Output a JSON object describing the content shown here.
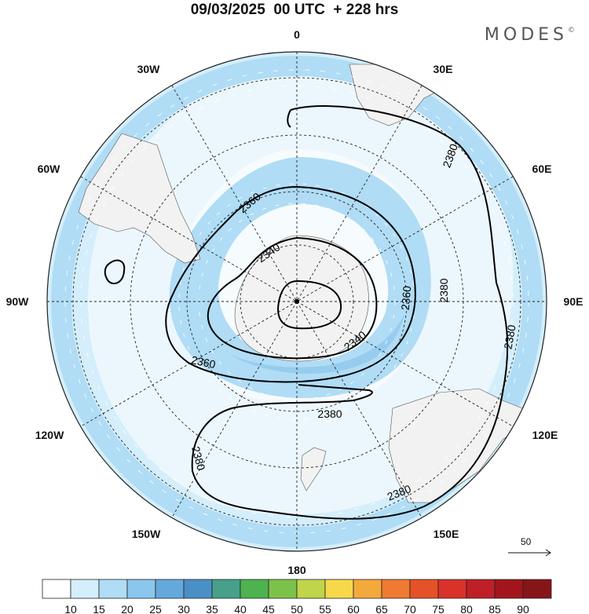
{
  "header": {
    "title": "09/03/2025  00 UTC  + 228 hrs",
    "brand": "MODES",
    "brand_mark": "©"
  },
  "map": {
    "projection": "south-polar-stereographic",
    "lon_labels": {
      "lon_0": "0",
      "lon_30e": "30E",
      "lon_60e": "60E",
      "lon_90e": "90E",
      "lon_120e": "120E",
      "lon_150e": "150E",
      "lon_180": "180",
      "lon_150w": "150W",
      "lon_120w": "120W",
      "lon_90w": "90W",
      "lon_60w": "60W",
      "lon_30w": "30W"
    },
    "contour_labels": {
      "c2340_a": "2340",
      "c2340_b": "2340",
      "c2360_a": "2360",
      "c2360_b": "2360",
      "c2360_c": "2360",
      "c2380_a": "2380",
      "c2380_b": "2380",
      "c2380_c": "2380",
      "c2380_d": "2380",
      "c2380_e": "2380",
      "c2380_f": "2380"
    },
    "wind_reference": {
      "label": "50"
    },
    "colors": {
      "shade_10_15": "#d4eefb",
      "shade_15_20": "#b0dcf5",
      "shade_20_25": "#8bc6ec",
      "land": "#f2f2f2"
    }
  },
  "colorbar": {
    "labels": [
      "10",
      "15",
      "20",
      "25",
      "30",
      "35",
      "40",
      "45",
      "50",
      "55",
      "60",
      "65",
      "70",
      "75",
      "80",
      "85",
      "90"
    ],
    "colors": [
      "#ffffff",
      "#d4eefb",
      "#b0dcf5",
      "#8bc6ec",
      "#65a9dc",
      "#4a8fc6",
      "#46a08a",
      "#4db34f",
      "#7cc24a",
      "#c0d44c",
      "#f6d94a",
      "#f4a93c",
      "#ef7a32",
      "#e65227",
      "#d9322a",
      "#bf1f26",
      "#a3151c",
      "#86151a"
    ]
  }
}
